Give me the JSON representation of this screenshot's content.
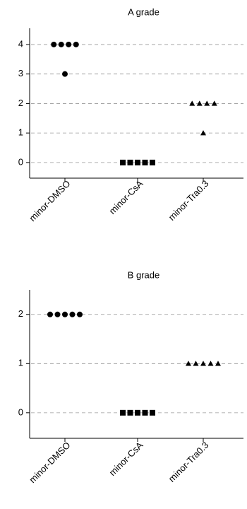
{
  "chart_data": [
    {
      "type": "strip",
      "title": "A grade",
      "categories": [
        "minor-DMSO",
        "minor-CsA",
        "minor-Tra0.3"
      ],
      "values": [
        [
          4,
          4,
          4,
          4,
          3
        ],
        [
          0,
          0,
          0,
          0,
          0
        ],
        [
          2,
          2,
          2,
          2,
          1
        ]
      ],
      "markers": [
        "circle",
        "square",
        "triangle"
      ],
      "color": "#000000",
      "ylim": [
        -0.53,
        4.55
      ],
      "yticks": [
        0,
        1,
        2,
        3,
        4
      ],
      "grid": true
    },
    {
      "type": "strip",
      "title": "B grade",
      "categories": [
        "minor-DMSO",
        "minor-CsA",
        "minor-Tra0.3"
      ],
      "values": [
        [
          2,
          2,
          2,
          2,
          2
        ],
        [
          0,
          0,
          0,
          0,
          0
        ],
        [
          1,
          1,
          1,
          1,
          1
        ]
      ],
      "markers": [
        "circle",
        "square",
        "triangle"
      ],
      "color": "#000000",
      "ylim": [
        -0.52,
        2.5
      ],
      "yticks": [
        0,
        1,
        2
      ],
      "grid": true
    }
  ]
}
